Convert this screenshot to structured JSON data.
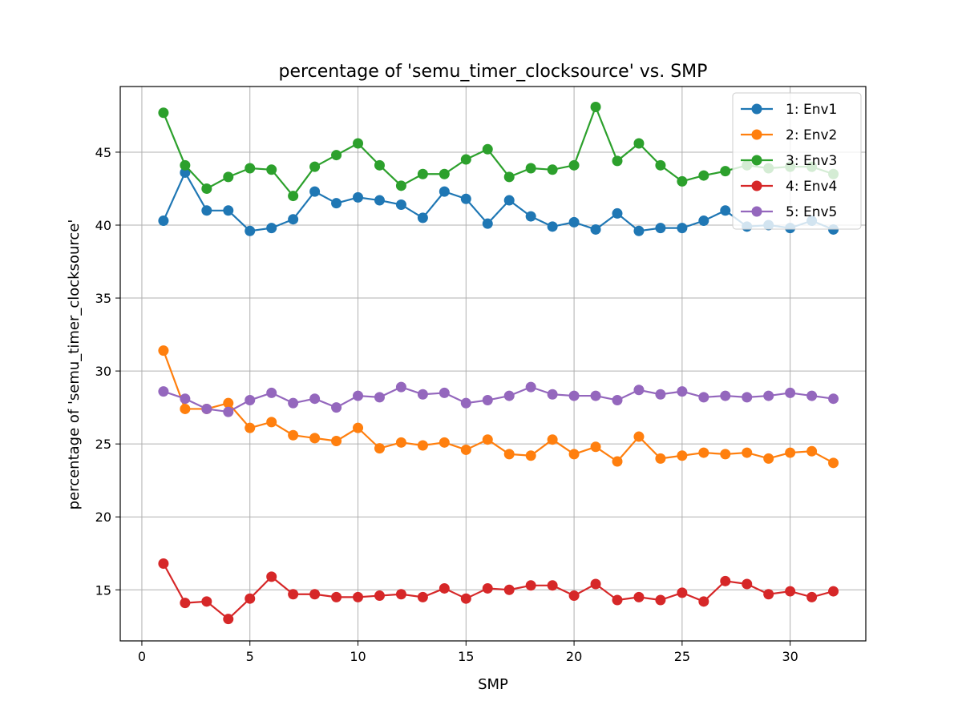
{
  "chart_data": {
    "type": "line",
    "title": "percentage of 'semu_timer_clocksource' vs. SMP",
    "xlabel": "SMP",
    "ylabel": "percentage of 'semu_timer_clocksource'",
    "xlim": [
      -1,
      33.5
    ],
    "ylim": [
      11.5,
      49.5
    ],
    "xticks": [
      0,
      5,
      10,
      15,
      20,
      25,
      30
    ],
    "yticks": [
      15,
      20,
      25,
      30,
      35,
      40,
      45
    ],
    "grid": true,
    "legend_position": "top-right",
    "x": [
      1,
      2,
      3,
      4,
      5,
      6,
      7,
      8,
      9,
      10,
      11,
      12,
      13,
      14,
      15,
      16,
      17,
      18,
      19,
      20,
      21,
      22,
      23,
      24,
      25,
      26,
      27,
      28,
      29,
      30,
      31,
      32
    ],
    "series": [
      {
        "name": "1: Env1",
        "color": "#1f77b4",
        "values": [
          40.3,
          43.6,
          41.0,
          41.0,
          39.6,
          39.8,
          40.4,
          42.3,
          41.5,
          41.9,
          41.7,
          41.4,
          40.5,
          42.3,
          41.8,
          40.1,
          41.7,
          40.6,
          39.9,
          40.2,
          39.7,
          40.8,
          39.6,
          39.8,
          39.8,
          40.3,
          41.0,
          39.9,
          40.0,
          39.8,
          40.3,
          39.7
        ]
      },
      {
        "name": "2: Env2",
        "color": "#ff7f0e",
        "values": [
          31.4,
          27.4,
          27.4,
          27.8,
          26.1,
          26.5,
          25.6,
          25.4,
          25.2,
          26.1,
          24.7,
          25.1,
          24.9,
          25.1,
          24.6,
          25.3,
          24.3,
          24.2,
          25.3,
          24.3,
          24.8,
          23.8,
          25.5,
          24.0,
          24.2,
          24.4,
          24.3,
          24.4,
          24.0,
          24.4,
          24.5,
          23.7
        ]
      },
      {
        "name": "3: Env3",
        "color": "#2ca02c",
        "values": [
          47.7,
          44.1,
          42.5,
          43.3,
          43.9,
          43.8,
          42.0,
          44.0,
          44.8,
          45.6,
          44.1,
          42.7,
          43.5,
          43.5,
          44.5,
          45.2,
          43.3,
          43.9,
          43.8,
          44.1,
          48.1,
          44.4,
          45.6,
          44.1,
          43.0,
          43.4,
          43.7,
          44.1,
          43.9,
          44.0,
          44.0,
          43.5
        ]
      },
      {
        "name": "4: Env4",
        "color": "#d62728",
        "values": [
          16.8,
          14.1,
          14.2,
          13.0,
          14.4,
          15.9,
          14.7,
          14.7,
          14.5,
          14.5,
          14.6,
          14.7,
          14.5,
          15.1,
          14.4,
          15.1,
          15.0,
          15.3,
          15.3,
          14.6,
          15.4,
          14.3,
          14.5,
          14.3,
          14.8,
          14.2,
          15.6,
          15.4,
          14.7,
          14.9,
          14.5,
          14.9
        ]
      },
      {
        "name": "5: Env5",
        "color": "#9467bd",
        "values": [
          28.6,
          28.1,
          27.4,
          27.2,
          28.0,
          28.5,
          27.8,
          28.1,
          27.5,
          28.3,
          28.2,
          28.9,
          28.4,
          28.5,
          27.8,
          28.0,
          28.3,
          28.9,
          28.4,
          28.3,
          28.3,
          28.0,
          28.7,
          28.4,
          28.6,
          28.2,
          28.3,
          28.2,
          28.3,
          28.5,
          28.3,
          28.1
        ]
      }
    ]
  }
}
